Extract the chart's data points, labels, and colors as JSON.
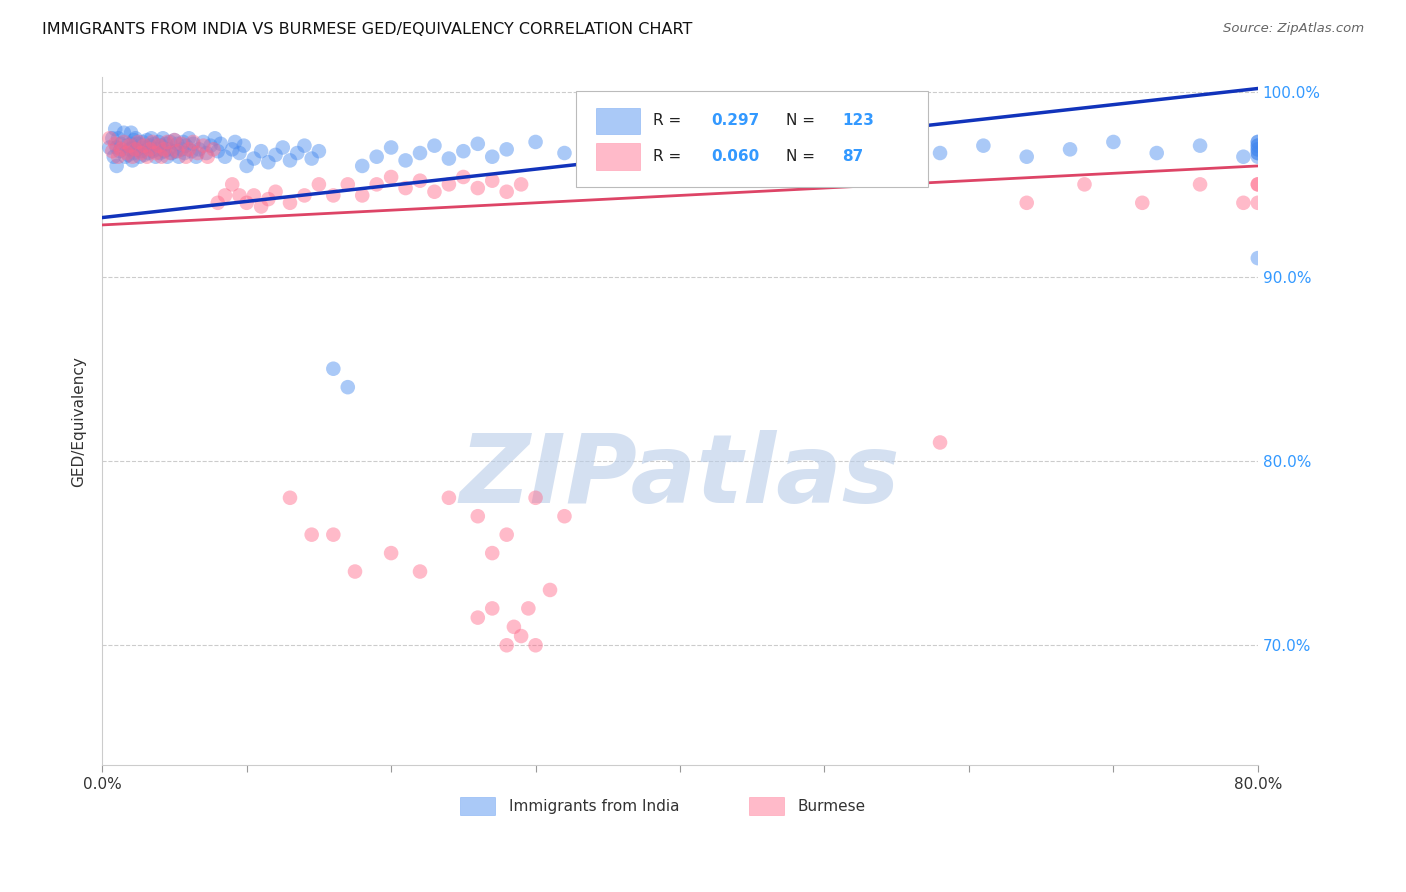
{
  "title": "IMMIGRANTS FROM INDIA VS BURMESE GED/EQUIVALENCY CORRELATION CHART",
  "source": "Source: ZipAtlas.com",
  "ylabel": "GED/Equivalency",
  "xlim": [
    0.0,
    0.8
  ],
  "ylim": [
    0.635,
    1.008
  ],
  "ytick_positions": [
    1.0,
    0.9,
    0.8,
    0.7
  ],
  "ytick_labels": [
    "100.0%",
    "90.0%",
    "80.0%",
    "70.0%"
  ],
  "xtick_positions": [
    0.0,
    0.1,
    0.2,
    0.3,
    0.4,
    0.5,
    0.6,
    0.7,
    0.8
  ],
  "xtick_labels": [
    "0.0%",
    "",
    "",
    "",
    "",
    "",
    "",
    "",
    "80.0%"
  ],
  "legend_entries": [
    {
      "label": "Immigrants from India",
      "R": 0.297,
      "N": 123,
      "color": "#6699ff"
    },
    {
      "label": "Burmese",
      "R": 0.06,
      "N": 87,
      "color": "#ff6699"
    }
  ],
  "blue_scatter_x": [
    0.005,
    0.007,
    0.008,
    0.009,
    0.01,
    0.01,
    0.011,
    0.012,
    0.013,
    0.015,
    0.016,
    0.017,
    0.018,
    0.019,
    0.02,
    0.02,
    0.021,
    0.021,
    0.022,
    0.022,
    0.023,
    0.024,
    0.025,
    0.026,
    0.027,
    0.028,
    0.029,
    0.03,
    0.031,
    0.032,
    0.033,
    0.034,
    0.035,
    0.036,
    0.037,
    0.038,
    0.039,
    0.04,
    0.041,
    0.042,
    0.043,
    0.044,
    0.045,
    0.046,
    0.047,
    0.048,
    0.05,
    0.051,
    0.052,
    0.053,
    0.055,
    0.056,
    0.057,
    0.058,
    0.06,
    0.062,
    0.063,
    0.065,
    0.067,
    0.07,
    0.072,
    0.075,
    0.078,
    0.08,
    0.082,
    0.085,
    0.09,
    0.092,
    0.095,
    0.098,
    0.1,
    0.105,
    0.11,
    0.115,
    0.12,
    0.125,
    0.13,
    0.135,
    0.14,
    0.145,
    0.15,
    0.16,
    0.17,
    0.18,
    0.19,
    0.2,
    0.21,
    0.22,
    0.23,
    0.24,
    0.25,
    0.26,
    0.27,
    0.28,
    0.3,
    0.32,
    0.34,
    0.36,
    0.38,
    0.4,
    0.43,
    0.46,
    0.49,
    0.52,
    0.55,
    0.58,
    0.61,
    0.64,
    0.67,
    0.7,
    0.73,
    0.76,
    0.79,
    0.8,
    0.8,
    0.8,
    0.8,
    0.8,
    0.8,
    0.8,
    0.8,
    0.8,
    0.8
  ],
  "blue_scatter_y": [
    0.97,
    0.975,
    0.965,
    0.98,
    0.96,
    0.97,
    0.975,
    0.968,
    0.972,
    0.978,
    0.965,
    0.971,
    0.966,
    0.969,
    0.972,
    0.978,
    0.963,
    0.97,
    0.974,
    0.967,
    0.975,
    0.969,
    0.972,
    0.965,
    0.968,
    0.973,
    0.966,
    0.97,
    0.974,
    0.967,
    0.971,
    0.975,
    0.968,
    0.972,
    0.965,
    0.969,
    0.973,
    0.967,
    0.971,
    0.975,
    0.968,
    0.972,
    0.965,
    0.969,
    0.973,
    0.967,
    0.974,
    0.968,
    0.972,
    0.965,
    0.969,
    0.973,
    0.967,
    0.971,
    0.975,
    0.968,
    0.972,
    0.965,
    0.969,
    0.973,
    0.967,
    0.971,
    0.975,
    0.968,
    0.972,
    0.965,
    0.969,
    0.973,
    0.967,
    0.971,
    0.96,
    0.964,
    0.968,
    0.962,
    0.966,
    0.97,
    0.963,
    0.967,
    0.971,
    0.964,
    0.968,
    0.85,
    0.84,
    0.96,
    0.965,
    0.97,
    0.963,
    0.967,
    0.971,
    0.964,
    0.968,
    0.972,
    0.965,
    0.969,
    0.973,
    0.967,
    0.971,
    0.965,
    0.969,
    0.973,
    0.967,
    0.971,
    0.965,
    0.969,
    0.973,
    0.967,
    0.971,
    0.965,
    0.969,
    0.973,
    0.967,
    0.971,
    0.965,
    0.969,
    0.973,
    0.967,
    0.971,
    0.965,
    0.969,
    0.973,
    0.967,
    0.971,
    0.91
  ],
  "pink_scatter_x": [
    0.005,
    0.007,
    0.009,
    0.011,
    0.013,
    0.015,
    0.017,
    0.019,
    0.021,
    0.023,
    0.025,
    0.027,
    0.029,
    0.031,
    0.033,
    0.035,
    0.037,
    0.039,
    0.041,
    0.043,
    0.045,
    0.047,
    0.05,
    0.052,
    0.055,
    0.058,
    0.06,
    0.063,
    0.066,
    0.07,
    0.073,
    0.077,
    0.08,
    0.085,
    0.09,
    0.095,
    0.1,
    0.105,
    0.11,
    0.115,
    0.12,
    0.13,
    0.14,
    0.15,
    0.16,
    0.17,
    0.18,
    0.19,
    0.2,
    0.21,
    0.22,
    0.23,
    0.24,
    0.25,
    0.26,
    0.27,
    0.28,
    0.29,
    0.13,
    0.145,
    0.16,
    0.175,
    0.2,
    0.22,
    0.24,
    0.26,
    0.27,
    0.28,
    0.3,
    0.32,
    0.27,
    0.285,
    0.295,
    0.31,
    0.3,
    0.29,
    0.28,
    0.26,
    0.58,
    0.64,
    0.68,
    0.72,
    0.76,
    0.79,
    0.8,
    0.8,
    0.8
  ],
  "pink_scatter_y": [
    0.975,
    0.968,
    0.972,
    0.965,
    0.969,
    0.973,
    0.967,
    0.971,
    0.965,
    0.969,
    0.973,
    0.967,
    0.971,
    0.965,
    0.969,
    0.973,
    0.967,
    0.971,
    0.965,
    0.969,
    0.973,
    0.967,
    0.974,
    0.968,
    0.972,
    0.965,
    0.969,
    0.973,
    0.967,
    0.971,
    0.965,
    0.969,
    0.94,
    0.944,
    0.95,
    0.944,
    0.94,
    0.944,
    0.938,
    0.942,
    0.946,
    0.94,
    0.944,
    0.95,
    0.944,
    0.95,
    0.944,
    0.95,
    0.954,
    0.948,
    0.952,
    0.946,
    0.95,
    0.954,
    0.948,
    0.952,
    0.946,
    0.95,
    0.78,
    0.76,
    0.76,
    0.74,
    0.75,
    0.74,
    0.78,
    0.77,
    0.75,
    0.76,
    0.78,
    0.77,
    0.72,
    0.71,
    0.72,
    0.73,
    0.7,
    0.705,
    0.7,
    0.715,
    0.81,
    0.94,
    0.95,
    0.94,
    0.95,
    0.94,
    0.95,
    0.94,
    0.95
  ],
  "blue_line_x": [
    0.0,
    0.8
  ],
  "blue_line_y": [
    0.932,
    1.002
  ],
  "pink_line_x": [
    0.0,
    0.8
  ],
  "pink_line_y": [
    0.928,
    0.96
  ],
  "background_color": "#ffffff",
  "grid_color": "#cccccc",
  "scatter_size": 110,
  "scatter_alpha": 0.45,
  "blue_color": "#4488ee",
  "pink_color": "#ff6688",
  "line_blue_color": "#1133bb",
  "line_pink_color": "#dd4466",
  "watermark_text": "ZIPatlas",
  "watermark_color": "#b8cce8",
  "watermark_alpha": 0.6
}
